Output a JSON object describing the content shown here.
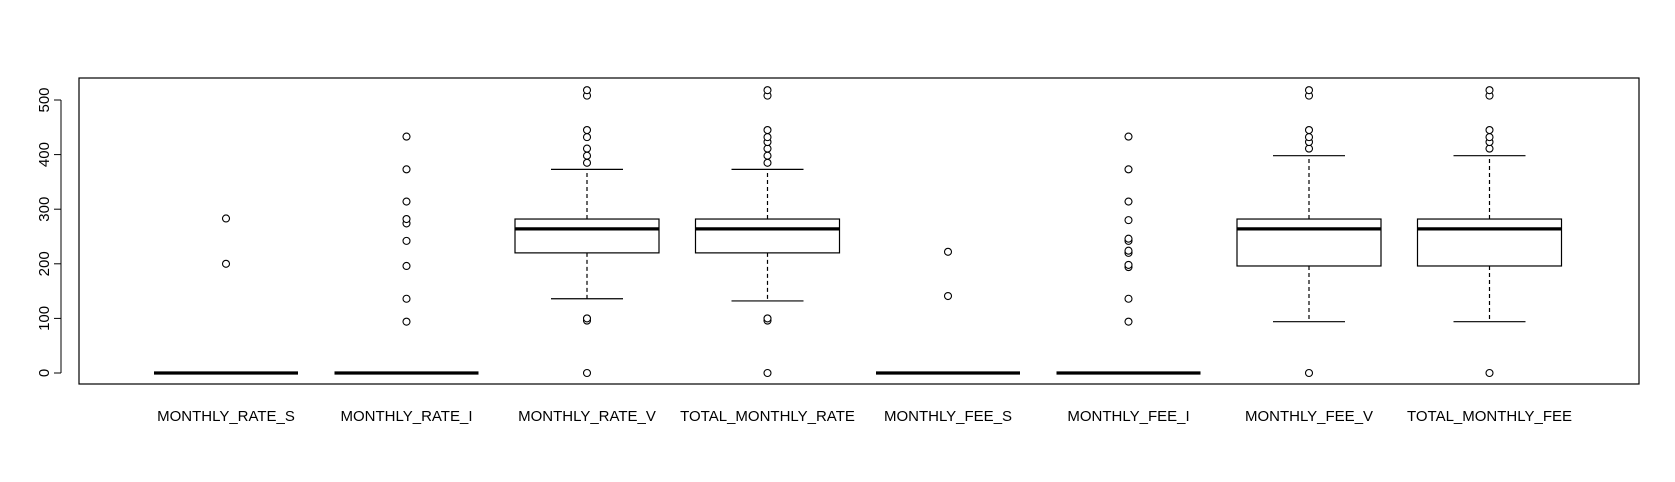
{
  "chart_data": {
    "type": "boxplot",
    "title": "",
    "xlabel": "",
    "ylabel": "",
    "ylim": [
      -20,
      520
    ],
    "yticks": [
      0,
      100,
      200,
      300,
      400,
      500
    ],
    "ytick_labels": [
      "0",
      "100",
      "200",
      "300",
      "400",
      "500"
    ],
    "grid": false,
    "categories": [
      "MONTHLY_RATE_S",
      "MONTHLY_RATE_I",
      "MONTHLY_RATE_V",
      "TOTAL_MONTHLY_RATE",
      "MONTHLY_FEE_S",
      "MONTHLY_FEE_I",
      "MONTHLY_FEE_V",
      "TOTAL_MONTHLY_FEE"
    ],
    "boxes": [
      {
        "whisker_low": 0,
        "q1": 0,
        "median": 0,
        "q3": 0,
        "whisker_high": 0,
        "outliers": [
          200,
          283
        ]
      },
      {
        "whisker_low": 0,
        "q1": 0,
        "median": 0,
        "q3": 0,
        "whisker_high": 0,
        "outliers": [
          94,
          136,
          196,
          242,
          274,
          282,
          314,
          373,
          433
        ]
      },
      {
        "whisker_low": 136,
        "q1": 220,
        "median": 264,
        "q3": 282,
        "whisker_high": 373,
        "outliers": [
          0,
          96,
          100,
          385,
          398,
          411,
          432,
          445,
          508,
          518
        ]
      },
      {
        "whisker_low": 132,
        "q1": 220,
        "median": 264,
        "q3": 282,
        "whisker_high": 373,
        "outliers": [
          0,
          96,
          100,
          385,
          398,
          411,
          423,
          432,
          445,
          508,
          518
        ]
      },
      {
        "whisker_low": 0,
        "q1": 0,
        "median": 0,
        "q3": 0,
        "whisker_high": 0,
        "outliers": [
          141,
          222
        ]
      },
      {
        "whisker_low": 0,
        "q1": 0,
        "median": 0,
        "q3": 0,
        "whisker_high": 0,
        "outliers": [
          94,
          136,
          194,
          198,
          220,
          224,
          242,
          246,
          280,
          314,
          373,
          433
        ]
      },
      {
        "whisker_low": 94,
        "q1": 196,
        "median": 264,
        "q3": 282,
        "whisker_high": 398,
        "outliers": [
          0,
          411,
          423,
          432,
          445,
          508,
          518
        ]
      },
      {
        "whisker_low": 94,
        "q1": 196,
        "median": 264,
        "q3": 282,
        "whisker_high": 398,
        "outliers": [
          0,
          411,
          423,
          432,
          445,
          508,
          518
        ]
      }
    ]
  }
}
